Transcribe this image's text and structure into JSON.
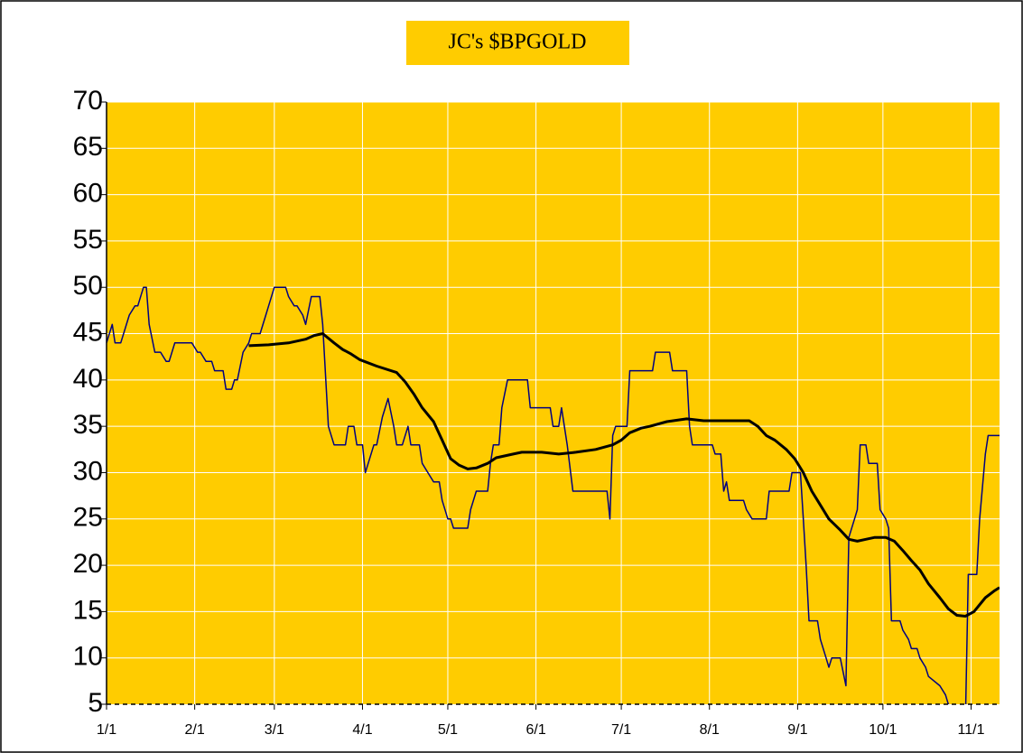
{
  "chart_data": {
    "type": "line",
    "title": "JC's $BPGOLD",
    "xlim": [
      0,
      314
    ],
    "xticks": [
      {
        "value": 0,
        "label": "1/1"
      },
      {
        "value": 31,
        "label": "2/1"
      },
      {
        "value": 59,
        "label": "3/1"
      },
      {
        "value": 90,
        "label": "4/1"
      },
      {
        "value": 120,
        "label": "5/1"
      },
      {
        "value": 151,
        "label": "6/1"
      },
      {
        "value": 181,
        "label": "7/1"
      },
      {
        "value": 212,
        "label": "8/1"
      },
      {
        "value": 243,
        "label": "9/1"
      },
      {
        "value": 273,
        "label": "10/1"
      },
      {
        "value": 304,
        "label": "11/1"
      }
    ],
    "ylim": [
      5,
      70
    ],
    "yticks": [
      5,
      10,
      15,
      20,
      25,
      30,
      35,
      40,
      45,
      50,
      55,
      60,
      65,
      70
    ],
    "grid": true,
    "background": "#ffcc00",
    "series": [
      {
        "color": "#000080",
        "linewidth": 1.5,
        "x": [
          0,
          2,
          3,
          5,
          6,
          8,
          10,
          11,
          13,
          14,
          15,
          17,
          19,
          21,
          22,
          24,
          30,
          32,
          33,
          35,
          37,
          38,
          41,
          42,
          44,
          45,
          46,
          48,
          50,
          51,
          54,
          56,
          57,
          59,
          63,
          64,
          66,
          67,
          69,
          70,
          72,
          75,
          76,
          78,
          80,
          84,
          85,
          87,
          88,
          90,
          91,
          92,
          94,
          95,
          97,
          99,
          101,
          102,
          104,
          106,
          107,
          110,
          111,
          113,
          115,
          117,
          118,
          120,
          121,
          122,
          127,
          128,
          130,
          134,
          135,
          136,
          138,
          139,
          141,
          148,
          149,
          156,
          157,
          159,
          160,
          162,
          164,
          176,
          177,
          178,
          179,
          183,
          184,
          192,
          193,
          198,
          199,
          204,
          205,
          206,
          213,
          214,
          216,
          217,
          218,
          219,
          224,
          225,
          227,
          232,
          233,
          240,
          241,
          244,
          245,
          246,
          247,
          250,
          251,
          253,
          254,
          255,
          258,
          260,
          261,
          263,
          264,
          265,
          267,
          268,
          271,
          272,
          274,
          275,
          276,
          279,
          280,
          282,
          283,
          285,
          286,
          288,
          289,
          293,
          295,
          296,
          299,
          301,
          302,
          303,
          306,
          307,
          309,
          310,
          314
        ],
        "values": [
          44,
          46,
          44,
          44,
          45,
          47,
          48,
          48,
          50,
          50,
          46,
          43,
          43,
          42,
          42,
          44,
          44,
          43,
          43,
          42,
          42,
          41,
          41,
          39,
          39,
          40,
          40,
          43,
          44,
          45,
          45,
          47,
          48,
          50,
          50,
          49,
          48,
          48,
          47,
          46,
          49,
          49,
          46,
          35,
          33,
          33,
          35,
          35,
          33,
          33,
          30,
          31,
          33,
          33,
          36,
          38,
          35,
          33,
          33,
          35,
          33,
          33,
          31,
          30,
          29,
          29,
          27,
          25,
          25,
          24,
          24,
          26,
          28,
          28,
          31,
          33,
          33,
          37,
          40,
          40,
          37,
          37,
          35,
          35,
          37,
          33,
          28,
          28,
          25,
          34,
          35,
          35,
          41,
          41,
          43,
          43,
          41,
          41,
          35,
          33,
          33,
          32,
          32,
          28,
          29,
          27,
          27,
          26,
          25,
          25,
          28,
          28,
          30,
          30,
          25,
          20,
          14,
          14,
          12,
          10,
          9,
          10,
          10,
          7,
          23,
          25,
          26,
          33,
          33,
          31,
          31,
          26,
          25,
          24,
          14,
          14,
          13,
          12,
          11,
          11,
          10,
          9,
          8,
          7,
          6,
          5,
          4,
          3,
          3,
          19,
          19,
          25,
          32,
          34,
          34
        ]
      },
      {
        "color": "#000000",
        "linewidth": 3,
        "x": [
          50,
          57,
          64,
          70,
          73,
          76,
          80,
          83,
          86,
          89,
          95,
          102,
          105,
          108,
          111,
          115,
          118,
          121,
          124,
          127,
          130,
          134,
          137,
          143,
          146,
          153,
          159,
          165,
          172,
          178,
          181,
          184,
          188,
          191,
          197,
          204,
          210,
          226,
          229,
          232,
          235,
          239,
          242,
          245,
          248,
          251,
          254,
          258,
          261,
          264,
          267,
          270,
          274,
          277,
          280,
          283,
          286,
          289,
          293,
          296,
          299,
          302,
          305,
          309,
          312,
          314
        ],
        "values": [
          43.7,
          43.8,
          44,
          44.4,
          44.8,
          45,
          44,
          43.3,
          42.8,
          42.2,
          41.5,
          40.8,
          39.8,
          38.5,
          37,
          35.5,
          33.5,
          31.5,
          30.8,
          30.4,
          30.5,
          31,
          31.6,
          32,
          32.2,
          32.2,
          32,
          32.2,
          32.5,
          33,
          33.5,
          34.3,
          34.8,
          35,
          35.5,
          35.8,
          35.6,
          35.6,
          35,
          34,
          33.5,
          32.5,
          31.5,
          30,
          28,
          26.5,
          25,
          23.8,
          22.8,
          22.6,
          22.8,
          23,
          23,
          22.6,
          21.6,
          20.5,
          19.5,
          18,
          16.5,
          15.3,
          14.6,
          14.5,
          15,
          16.5,
          17.2,
          17.6
        ]
      }
    ]
  }
}
